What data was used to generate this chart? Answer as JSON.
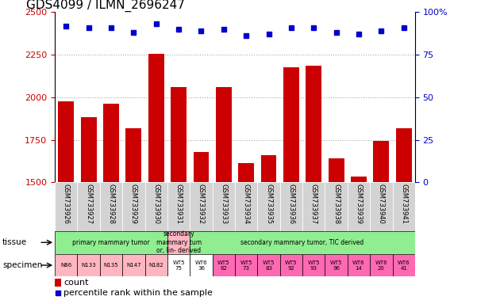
{
  "title": "GDS4099 / ILMN_2696247",
  "samples": [
    "GSM733926",
    "GSM733927",
    "GSM733928",
    "GSM733929",
    "GSM733930",
    "GSM733931",
    "GSM733932",
    "GSM733933",
    "GSM733934",
    "GSM733935",
    "GSM733936",
    "GSM733937",
    "GSM733938",
    "GSM733939",
    "GSM733940",
    "GSM733941"
  ],
  "counts": [
    1975,
    1885,
    1960,
    1820,
    2255,
    2060,
    1680,
    2060,
    1615,
    1660,
    2175,
    2185,
    1640,
    1535,
    1745,
    1820
  ],
  "percentile_ranks": [
    92,
    91,
    91,
    88,
    93,
    90,
    89,
    90,
    86,
    87,
    91,
    91,
    88,
    87,
    89,
    91
  ],
  "bar_color": "#cc0000",
  "dot_color": "#0000cc",
  "ylim_left": [
    1500,
    2500
  ],
  "ylim_right": [
    0,
    100
  ],
  "yticks_left": [
    1500,
    1750,
    2000,
    2250,
    2500
  ],
  "yticks_right": [
    0,
    25,
    50,
    75,
    100
  ],
  "right_tick_labels": [
    "0",
    "25",
    "50",
    "75",
    "100%"
  ],
  "grid_lines": [
    1750,
    2000,
    2250
  ],
  "grid_color": "#aaaaaa",
  "tissue_groups": [
    {
      "label": "primary mammary tumor",
      "start": 0,
      "end": 5,
      "color": "#90ee90"
    },
    {
      "label": "secondary\nmammary tum\nor, lin- derived",
      "start": 5,
      "end": 6,
      "color": "#ffb6c1"
    },
    {
      "label": "secondary mammary tumor, TIC derived",
      "start": 6,
      "end": 16,
      "color": "#90ee90"
    }
  ],
  "specimen_labels": [
    "N86",
    "N133",
    "N135",
    "N147",
    "N182",
    "WT5\n75",
    "WT6\n36",
    "WT5\n62",
    "WT5\n73",
    "WT5\n83",
    "WT5\n92",
    "WT5\n93",
    "WT5\n96",
    "WT6\n14",
    "WT6\n20",
    "WT6\n41"
  ],
  "specimen_colors": [
    "#ffb6c1",
    "#ffb6c1",
    "#ffb6c1",
    "#ffb6c1",
    "#ffb6c1",
    "#ffffff",
    "#ffffff",
    "#ff69b4",
    "#ff69b4",
    "#ff69b4",
    "#ff69b4",
    "#ff69b4",
    "#ff69b4",
    "#ff69b4",
    "#ff69b4",
    "#ff69b4"
  ],
  "legend_count_color": "#cc0000",
  "legend_dot_color": "#0000cc",
  "tick_label_color_left": "#cc0000",
  "tick_label_color_right": "#0000cc",
  "xticklabel_bg": "#d3d3d3",
  "title_fontsize": 11,
  "bar_width": 0.7
}
